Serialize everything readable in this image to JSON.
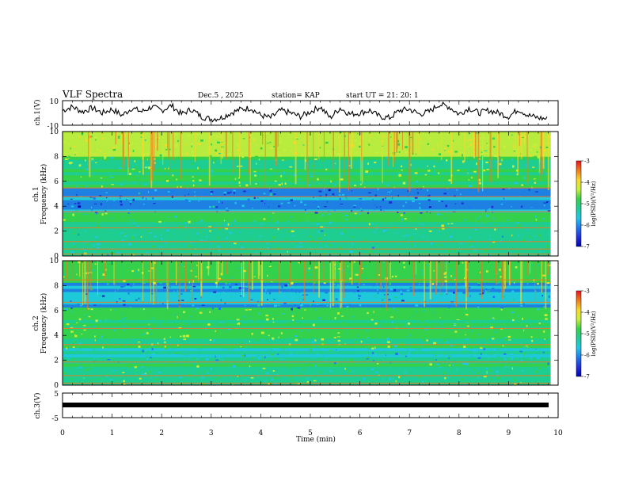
{
  "header": {
    "title": "VLF Spectra",
    "date": "Dec.5 , 2025",
    "station": "station= KAP",
    "start": "start UT = 21: 20: 1"
  },
  "colorbar": {
    "label": "log(PSD)(V²/Hz)",
    "ticks": [
      "-3",
      "-4",
      "-5",
      "-6",
      "-7"
    ],
    "colors": [
      "#e8141e",
      "#f07a1e",
      "#f8d82a",
      "#c8ee3c",
      "#36d04a",
      "#1ecc96",
      "#1ec8e6",
      "#1e78f0",
      "#2030d8",
      "#0000b0"
    ]
  },
  "colors": {
    "trace": "#000000",
    "spec_base": "#1fcf5a"
  },
  "chart_data": [
    {
      "type": "line",
      "name": "ch1-waveform",
      "ylabel": "ch.1(V)",
      "ylim": [
        -10,
        10
      ],
      "yticklabels": [
        "10",
        "-10"
      ],
      "xlim": [
        0,
        10
      ],
      "x": [
        0,
        0.2,
        0.4,
        0.6,
        0.8,
        1.0,
        1.2,
        1.4,
        1.6,
        1.8,
        2.0,
        2.2,
        2.4,
        2.6,
        2.8,
        3.0,
        3.2,
        3.4,
        3.6,
        3.8,
        4.0,
        4.2,
        4.4,
        4.6,
        4.8,
        5.0,
        5.2,
        5.4,
        5.6,
        5.8,
        6.0,
        6.2,
        6.4,
        6.6,
        6.8,
        7.0,
        7.2,
        7.4,
        7.6,
        7.8,
        8.0,
        8.2,
        8.4,
        8.6,
        8.8,
        9.0,
        9.2,
        9.4,
        9.6,
        9.8
      ],
      "values": [
        2,
        5,
        1,
        4,
        0,
        3,
        -2,
        4,
        1,
        5,
        2,
        6,
        -1,
        3,
        -3,
        -5,
        -4,
        0,
        3,
        4,
        -2,
        -4,
        2,
        0,
        -3,
        1,
        5,
        -4,
        4,
        -1,
        0,
        2,
        -3,
        -4,
        2,
        3,
        -1,
        1,
        7,
        5,
        -1,
        4,
        0,
        2,
        0,
        -3,
        3,
        -2,
        -4,
        -5
      ]
    },
    {
      "type": "heatmap",
      "name": "ch1-spectrogram",
      "ylabel": "Frequency (kHz)",
      "chlabel": "ch.1",
      "ylim": [
        0,
        10
      ],
      "yticklabels": [
        "0",
        "2",
        "4",
        "6",
        "8",
        "10"
      ],
      "xlim": [
        0,
        10
      ],
      "description_bands": [
        {
          "from": 8.0,
          "to": 10.0,
          "level": "high"
        },
        {
          "from": 5.5,
          "to": 8.0,
          "level": "medium"
        },
        {
          "from": 3.5,
          "to": 5.5,
          "level": "low"
        },
        {
          "from": 0.0,
          "to": 3.5,
          "level": "medium"
        }
      ]
    },
    {
      "type": "heatmap",
      "name": "ch2-spectrogram",
      "ylabel": "Frequency (kHz)",
      "chlabel": "ch.2",
      "ylim": [
        0,
        10
      ],
      "yticklabels": [
        "0",
        "2",
        "4",
        "6",
        "8",
        "10"
      ],
      "xlim": [
        0,
        10
      ],
      "description_bands": [
        {
          "from": 8.0,
          "to": 10.0,
          "level": "medium"
        },
        {
          "from": 6.0,
          "to": 8.0,
          "level": "low"
        },
        {
          "from": 3.0,
          "to": 6.0,
          "level": "medium"
        },
        {
          "from": 0.0,
          "to": 3.0,
          "level": "mixed"
        }
      ]
    },
    {
      "type": "line",
      "name": "ch3-waveform",
      "ylabel": "ch.3(V)",
      "ylim": [
        -5,
        5
      ],
      "yticklabels": [
        "5",
        "-5"
      ],
      "xlim": [
        0,
        10
      ],
      "x": [
        0,
        9.85
      ],
      "values": [
        0,
        0
      ]
    }
  ],
  "xaxis": {
    "label": "Time (min)",
    "ticklabels": [
      "0",
      "1",
      "2",
      "3",
      "4",
      "5",
      "6",
      "7",
      "8",
      "9",
      "10"
    ]
  }
}
